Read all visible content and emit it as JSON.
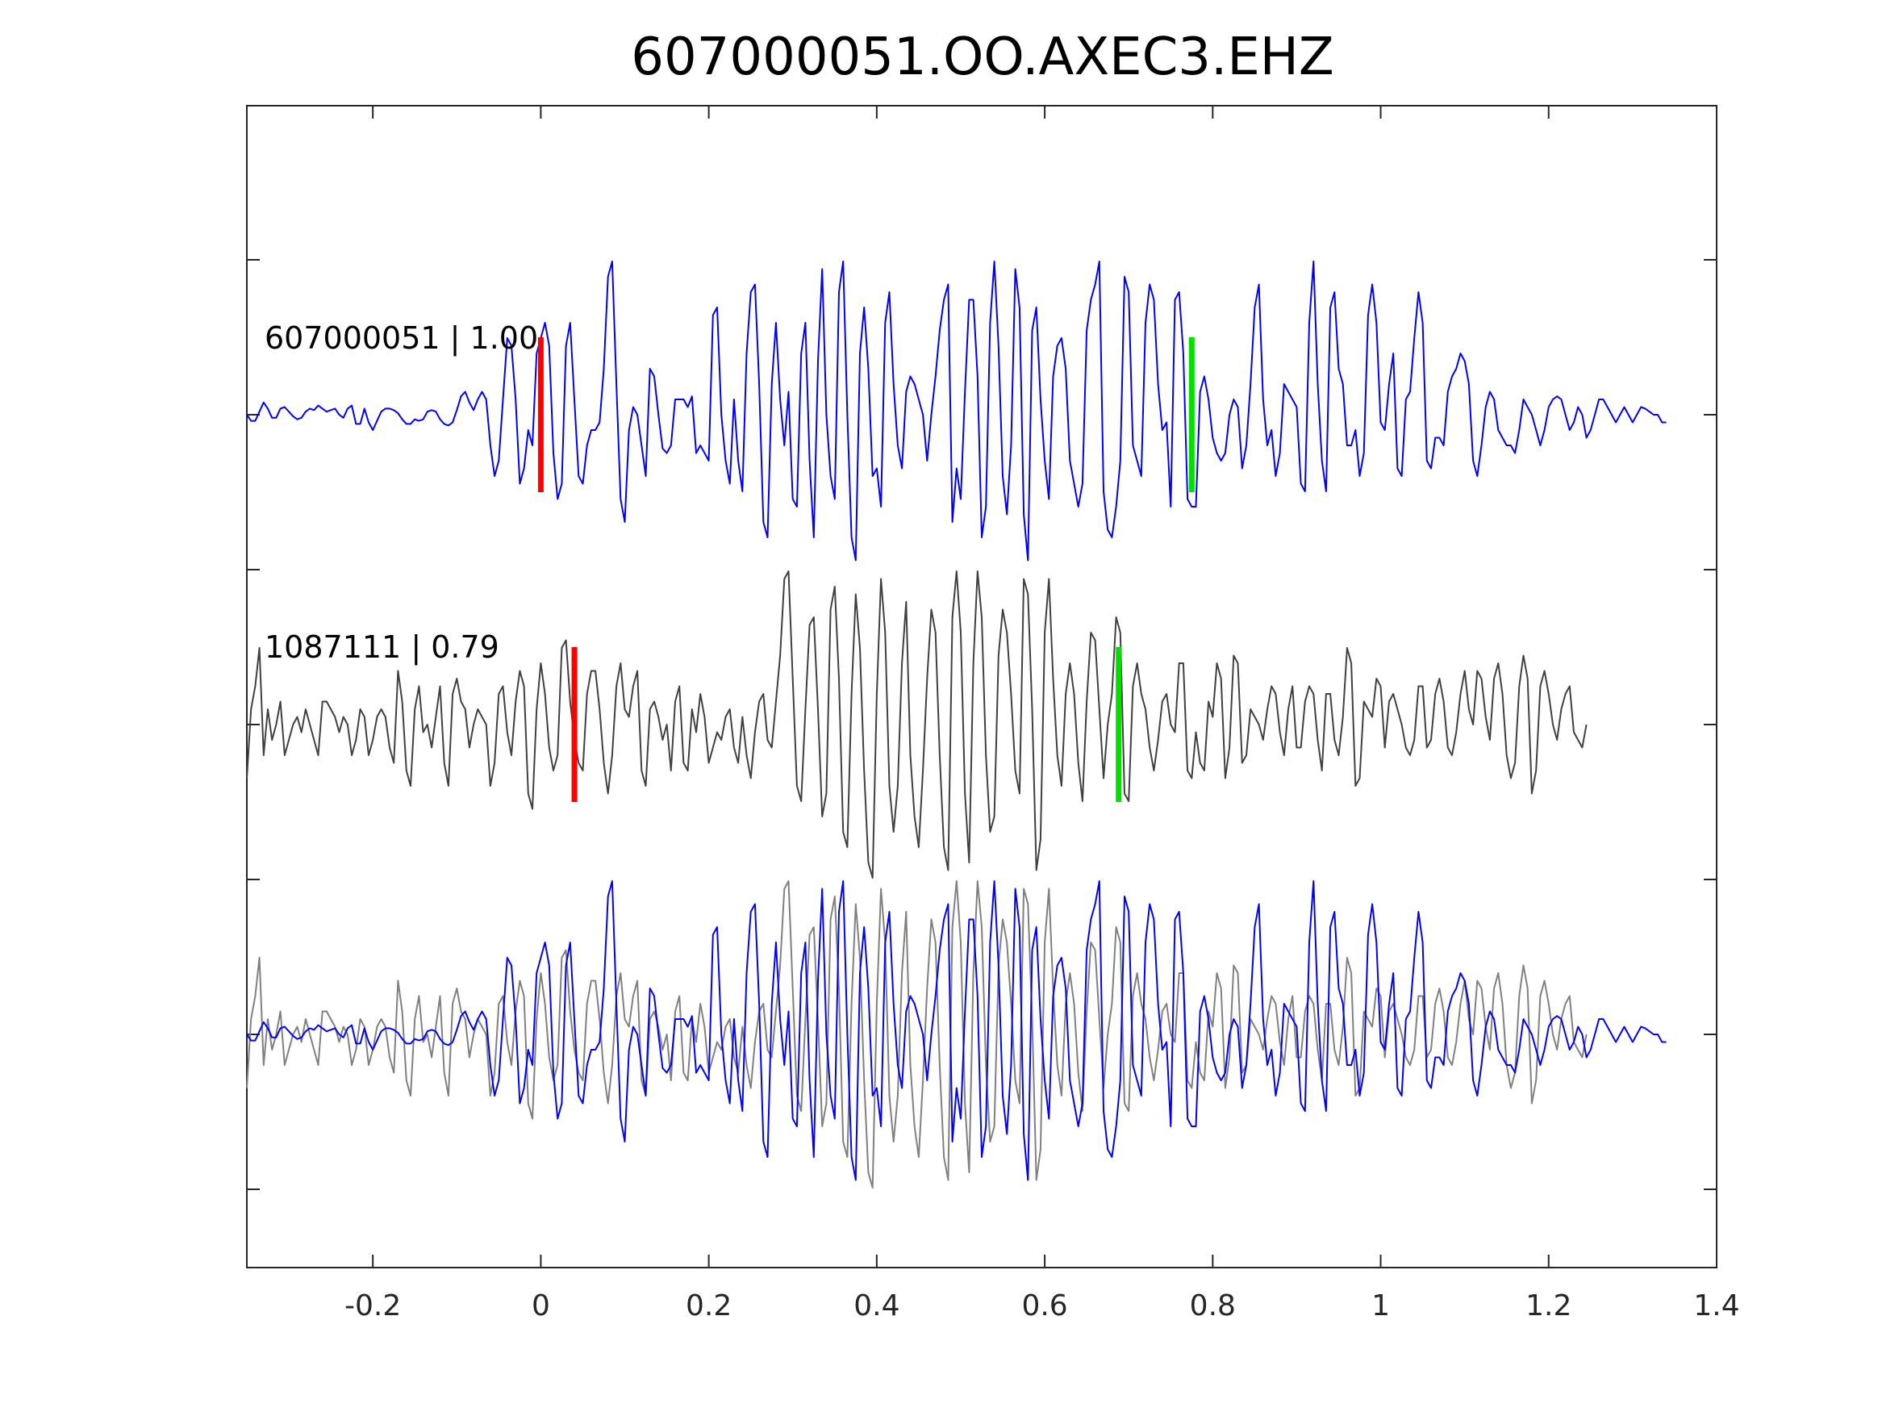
{
  "chart_data": {
    "type": "line",
    "title": "607000051.OO.AXEC3.EHZ",
    "xlabel": "",
    "ylabel": "",
    "xlim": [
      -0.35,
      1.4
    ],
    "x_ticks": [
      -0.2,
      0,
      0.2,
      0.4,
      0.6,
      0.8,
      1,
      1.2,
      1.4
    ],
    "x_tick_labels": [
      "-0.2",
      "0",
      "0.2",
      "0.4",
      "0.6",
      "0.8",
      "1",
      "1.2",
      "1.4"
    ],
    "grid": false,
    "legend": "none",
    "sample_interval": 0.005,
    "panels": [
      {
        "label": "607000051 | 1.00",
        "trace_color": "#0000ff",
        "picks": [
          {
            "phase_color": "#ff0000",
            "time": 0.0
          },
          {
            "phase_color": "#00e000",
            "time": 0.775
          }
        ]
      },
      {
        "label": "1087111 | 0.79",
        "trace_color": "#404040",
        "picks": [
          {
            "phase_color": "#ff0000",
            "time": 0.04
          },
          {
            "phase_color": "#00e000",
            "time": 0.688
          }
        ]
      },
      {
        "label": "",
        "overlay": true,
        "trace_colors": [
          "#808080",
          "#0000ff"
        ]
      }
    ],
    "template_waveform": {
      "name": "607000051",
      "color": "#0000ff",
      "t_start": -0.35,
      "dt": 0.005,
      "amplitude": [
        0.0,
        -0.04,
        -0.04,
        0.02,
        0.08,
        0.04,
        -0.02,
        -0.02,
        0.04,
        0.05,
        0.02,
        -0.01,
        -0.03,
        -0.02,
        0.02,
        0.04,
        0.03,
        0.06,
        0.04,
        0.02,
        0.03,
        0.04,
        0.0,
        -0.02,
        0.04,
        0.06,
        -0.06,
        -0.06,
        0.04,
        -0.05,
        -0.1,
        -0.04,
        0.02,
        0.04,
        0.04,
        0.03,
        0.01,
        -0.03,
        -0.06,
        -0.06,
        -0.03,
        -0.04,
        -0.03,
        0.02,
        0.03,
        0.02,
        -0.03,
        -0.06,
        -0.07,
        -0.05,
        0.03,
        0.12,
        0.15,
        0.08,
        0.03,
        0.1,
        0.15,
        0.1,
        -0.2,
        -0.4,
        -0.3,
        0.1,
        0.5,
        0.45,
        0.1,
        -0.45,
        -0.35,
        -0.1,
        -0.2,
        0.4,
        0.5,
        0.6,
        0.45,
        -0.25,
        -0.55,
        -0.45,
        0.45,
        0.6,
        0.1,
        -0.4,
        -0.45,
        -0.2,
        -0.1,
        -0.1,
        -0.05,
        0.3,
        0.9,
        1.0,
        0.2,
        -0.55,
        -0.7,
        -0.1,
        0.05,
        0.0,
        -0.2,
        -0.4,
        0.3,
        0.25,
        0.0,
        -0.22,
        -0.25,
        -0.2,
        0.1,
        0.1,
        0.1,
        0.05,
        0.12,
        -0.25,
        -0.2,
        -0.25,
        -0.3,
        0.65,
        0.7,
        0.0,
        -0.3,
        -0.45,
        0.1,
        -0.3,
        -0.5,
        0.4,
        0.8,
        0.85,
        0.2,
        -0.7,
        -0.8,
        0.2,
        0.6,
        0.1,
        -0.2,
        0.15,
        -0.55,
        -0.6,
        0.4,
        0.6,
        -0.3,
        -0.8,
        0.35,
        0.95,
        0.0,
        -0.4,
        -0.55,
        0.8,
        1.0,
        0.0,
        -0.8,
        -0.95,
        0.4,
        0.7,
        0.3,
        -0.4,
        -0.35,
        -0.6,
        0.6,
        0.8,
        0.2,
        -0.2,
        -0.35,
        0.15,
        0.25,
        0.2,
        0.1,
        0.0,
        -0.3,
        0.0,
        0.25,
        0.55,
        0.75,
        0.85,
        -0.7,
        -0.35,
        -0.55,
        0.15,
        0.75,
        0.75,
        0.25,
        -0.8,
        -0.6,
        0.6,
        1.0,
        0.45,
        -0.4,
        -0.65,
        -0.2,
        0.95,
        0.7,
        -0.65,
        -0.95,
        0.55,
        0.7,
        0.1,
        -0.3,
        -0.55,
        0.25,
        0.45,
        0.5,
        0.3,
        -0.3,
        -0.45,
        -0.6,
        -0.45,
        0.55,
        0.75,
        0.85,
        1.0,
        -0.5,
        -0.75,
        -0.8,
        -0.6,
        -0.3,
        0.9,
        0.8,
        -0.2,
        -0.3,
        -0.4,
        0.6,
        0.85,
        0.75,
        0.2,
        -0.1,
        -0.05,
        -0.6,
        0.75,
        0.8,
        0.4,
        -0.55,
        -0.6,
        -0.6,
        0.15,
        0.25,
        0.1,
        -0.15,
        -0.25,
        -0.3,
        -0.25,
        0.0,
        0.1,
        0.05,
        -0.35,
        -0.2,
        0.2,
        0.7,
        0.85,
        0.1,
        -0.2,
        -0.1,
        -0.4,
        -0.25,
        0.2,
        0.15,
        0.1,
        0.05,
        -0.45,
        -0.5,
        0.6,
        1.0,
        0.2,
        -0.3,
        -0.5,
        0.7,
        0.8,
        0.3,
        0.2,
        -0.2,
        -0.2,
        -0.1,
        -0.4,
        -0.25,
        0.65,
        0.85,
        0.6,
        -0.05,
        -0.1,
        0.2,
        0.4,
        -0.35,
        -0.4,
        0.1,
        0.15,
        0.5,
        0.8,
        0.6,
        -0.3,
        -0.35,
        -0.15,
        -0.15,
        -0.2,
        0.15,
        0.25,
        0.3,
        0.4,
        0.35,
        0.2,
        -0.3,
        -0.4,
        -0.2,
        0.05,
        0.15,
        0.1,
        -0.1,
        -0.15,
        -0.2,
        -0.2,
        -0.25,
        -0.1,
        0.1,
        0.05,
        0.0,
        -0.1,
        -0.2,
        -0.1,
        0.05,
        0.1,
        0.12,
        0.1,
        0.0,
        -0.1,
        -0.05,
        0.05,
        0.0,
        -0.15,
        -0.1,
        0.0,
        0.1,
        0.1,
        0.05,
        0.0,
        -0.05,
        0.0,
        0.05,
        0.0,
        -0.05,
        0.0,
        0.05,
        0.04,
        0.02,
        0.0,
        0.0,
        -0.05,
        -0.05
      ],
      "snr_scale": 1.0
    },
    "detection_waveform": {
      "name": "1087111",
      "color": "#404040",
      "t_start": -0.35,
      "dt": 0.005,
      "amplitude": [
        -0.35,
        0.1,
        0.25,
        0.5,
        -0.2,
        0.1,
        -0.1,
        0.0,
        0.15,
        -0.2,
        -0.1,
        0.0,
        0.05,
        -0.05,
        0.1,
        0.0,
        -0.1,
        -0.2,
        0.15,
        0.15,
        0.1,
        0.05,
        -0.05,
        0.05,
        0.0,
        -0.2,
        -0.1,
        0.1,
        0.05,
        -0.2,
        -0.1,
        0.05,
        0.1,
        0.05,
        -0.15,
        -0.25,
        0.35,
        0.15,
        -0.3,
        -0.4,
        0.1,
        0.25,
        -0.05,
        0.0,
        -0.15,
        0.05,
        0.25,
        -0.25,
        -0.4,
        0.2,
        0.3,
        0.15,
        0.1,
        -0.15,
        0.0,
        0.1,
        0.05,
        0.0,
        -0.4,
        -0.25,
        0.2,
        0.25,
        -0.05,
        -0.2,
        0.15,
        0.35,
        0.25,
        -0.45,
        -0.55,
        0.1,
        0.4,
        0.2,
        -0.15,
        -0.3,
        -0.2,
        0.5,
        0.55,
        0.15,
        -0.1,
        -0.25,
        -0.3,
        0.2,
        0.35,
        0.35,
        0.1,
        -0.25,
        -0.45,
        -0.2,
        0.25,
        0.4,
        0.1,
        0.05,
        0.25,
        0.35,
        -0.3,
        -0.4,
        0.1,
        0.15,
        0.05,
        -0.1,
        0.0,
        -0.3,
        0.15,
        0.25,
        -0.25,
        -0.3,
        0.1,
        -0.05,
        0.2,
        0.05,
        -0.25,
        -0.15,
        -0.05,
        -0.1,
        0.05,
        0.1,
        -0.15,
        -0.25,
        0.05,
        -0.2,
        -0.35,
        -0.05,
        0.15,
        0.2,
        -0.1,
        -0.15,
        0.15,
        0.45,
        0.95,
        1.0,
        0.3,
        -0.4,
        -0.5,
        0.1,
        0.65,
        0.7,
        0.1,
        -0.6,
        -0.45,
        0.75,
        0.9,
        0.3,
        -0.7,
        -0.8,
        0.2,
        0.85,
        0.5,
        -0.3,
        -0.9,
        -1.0,
        0.2,
        0.95,
        0.6,
        -0.4,
        -0.7,
        -0.4,
        0.4,
        0.8,
        -0.2,
        -0.6,
        -0.8,
        -0.3,
        0.3,
        0.75,
        0.6,
        -0.2,
        -0.8,
        -0.95,
        0.7,
        1.0,
        0.6,
        -0.45,
        -0.9,
        0.4,
        1.0,
        0.7,
        -0.2,
        -0.7,
        -0.6,
        0.45,
        0.75,
        0.6,
        0.2,
        -0.3,
        -0.45,
        0.95,
        0.85,
        0.1,
        -0.95,
        -0.75,
        0.6,
        0.95,
        0.3,
        -0.2,
        -0.4,
        0.2,
        0.4,
        0.2,
        -0.25,
        -0.5,
        0.15,
        0.6,
        0.55,
        0.1,
        -0.35,
        0.0,
        0.2,
        0.7,
        0.6,
        -0.45,
        -0.5,
        0.25,
        0.4,
        0.2,
        0.1,
        -0.15,
        -0.3,
        -0.1,
        0.15,
        0.2,
        0.0,
        -0.05,
        0.4,
        0.4,
        -0.3,
        -0.35,
        -0.05,
        -0.25,
        -0.3,
        0.15,
        0.05,
        0.4,
        0.3,
        -0.35,
        -0.15,
        0.45,
        0.4,
        -0.25,
        -0.2,
        0.1,
        0.05,
        0.0,
        -0.1,
        0.1,
        0.25,
        0.2,
        -0.05,
        -0.2,
        0.1,
        0.25,
        -0.15,
        -0.15,
        0.15,
        0.25,
        0.2,
        -0.1,
        -0.3,
        0.2,
        0.2,
        -0.1,
        -0.2,
        0.05,
        0.5,
        0.4,
        -0.4,
        -0.35,
        0.15,
        0.1,
        0.05,
        0.3,
        0.25,
        -0.15,
        0.15,
        0.2,
        0.1,
        0.0,
        -0.15,
        -0.2,
        -0.1,
        0.25,
        0.25,
        -0.15,
        -0.1,
        0.2,
        0.3,
        0.15,
        -0.15,
        -0.2,
        -0.05,
        0.2,
        0.35,
        0.1,
        0.0,
        0.35,
        0.3,
        0.05,
        -0.1,
        0.3,
        0.4,
        0.2,
        -0.2,
        -0.35,
        -0.25,
        0.25,
        0.45,
        0.3,
        -0.45,
        -0.3,
        0.25,
        0.35,
        0.2,
        0.0,
        -0.1,
        0.1,
        0.2,
        0.25,
        -0.05,
        -0.1,
        -0.15,
        0.0
      ],
      "snr_scale": 1.0
    }
  }
}
